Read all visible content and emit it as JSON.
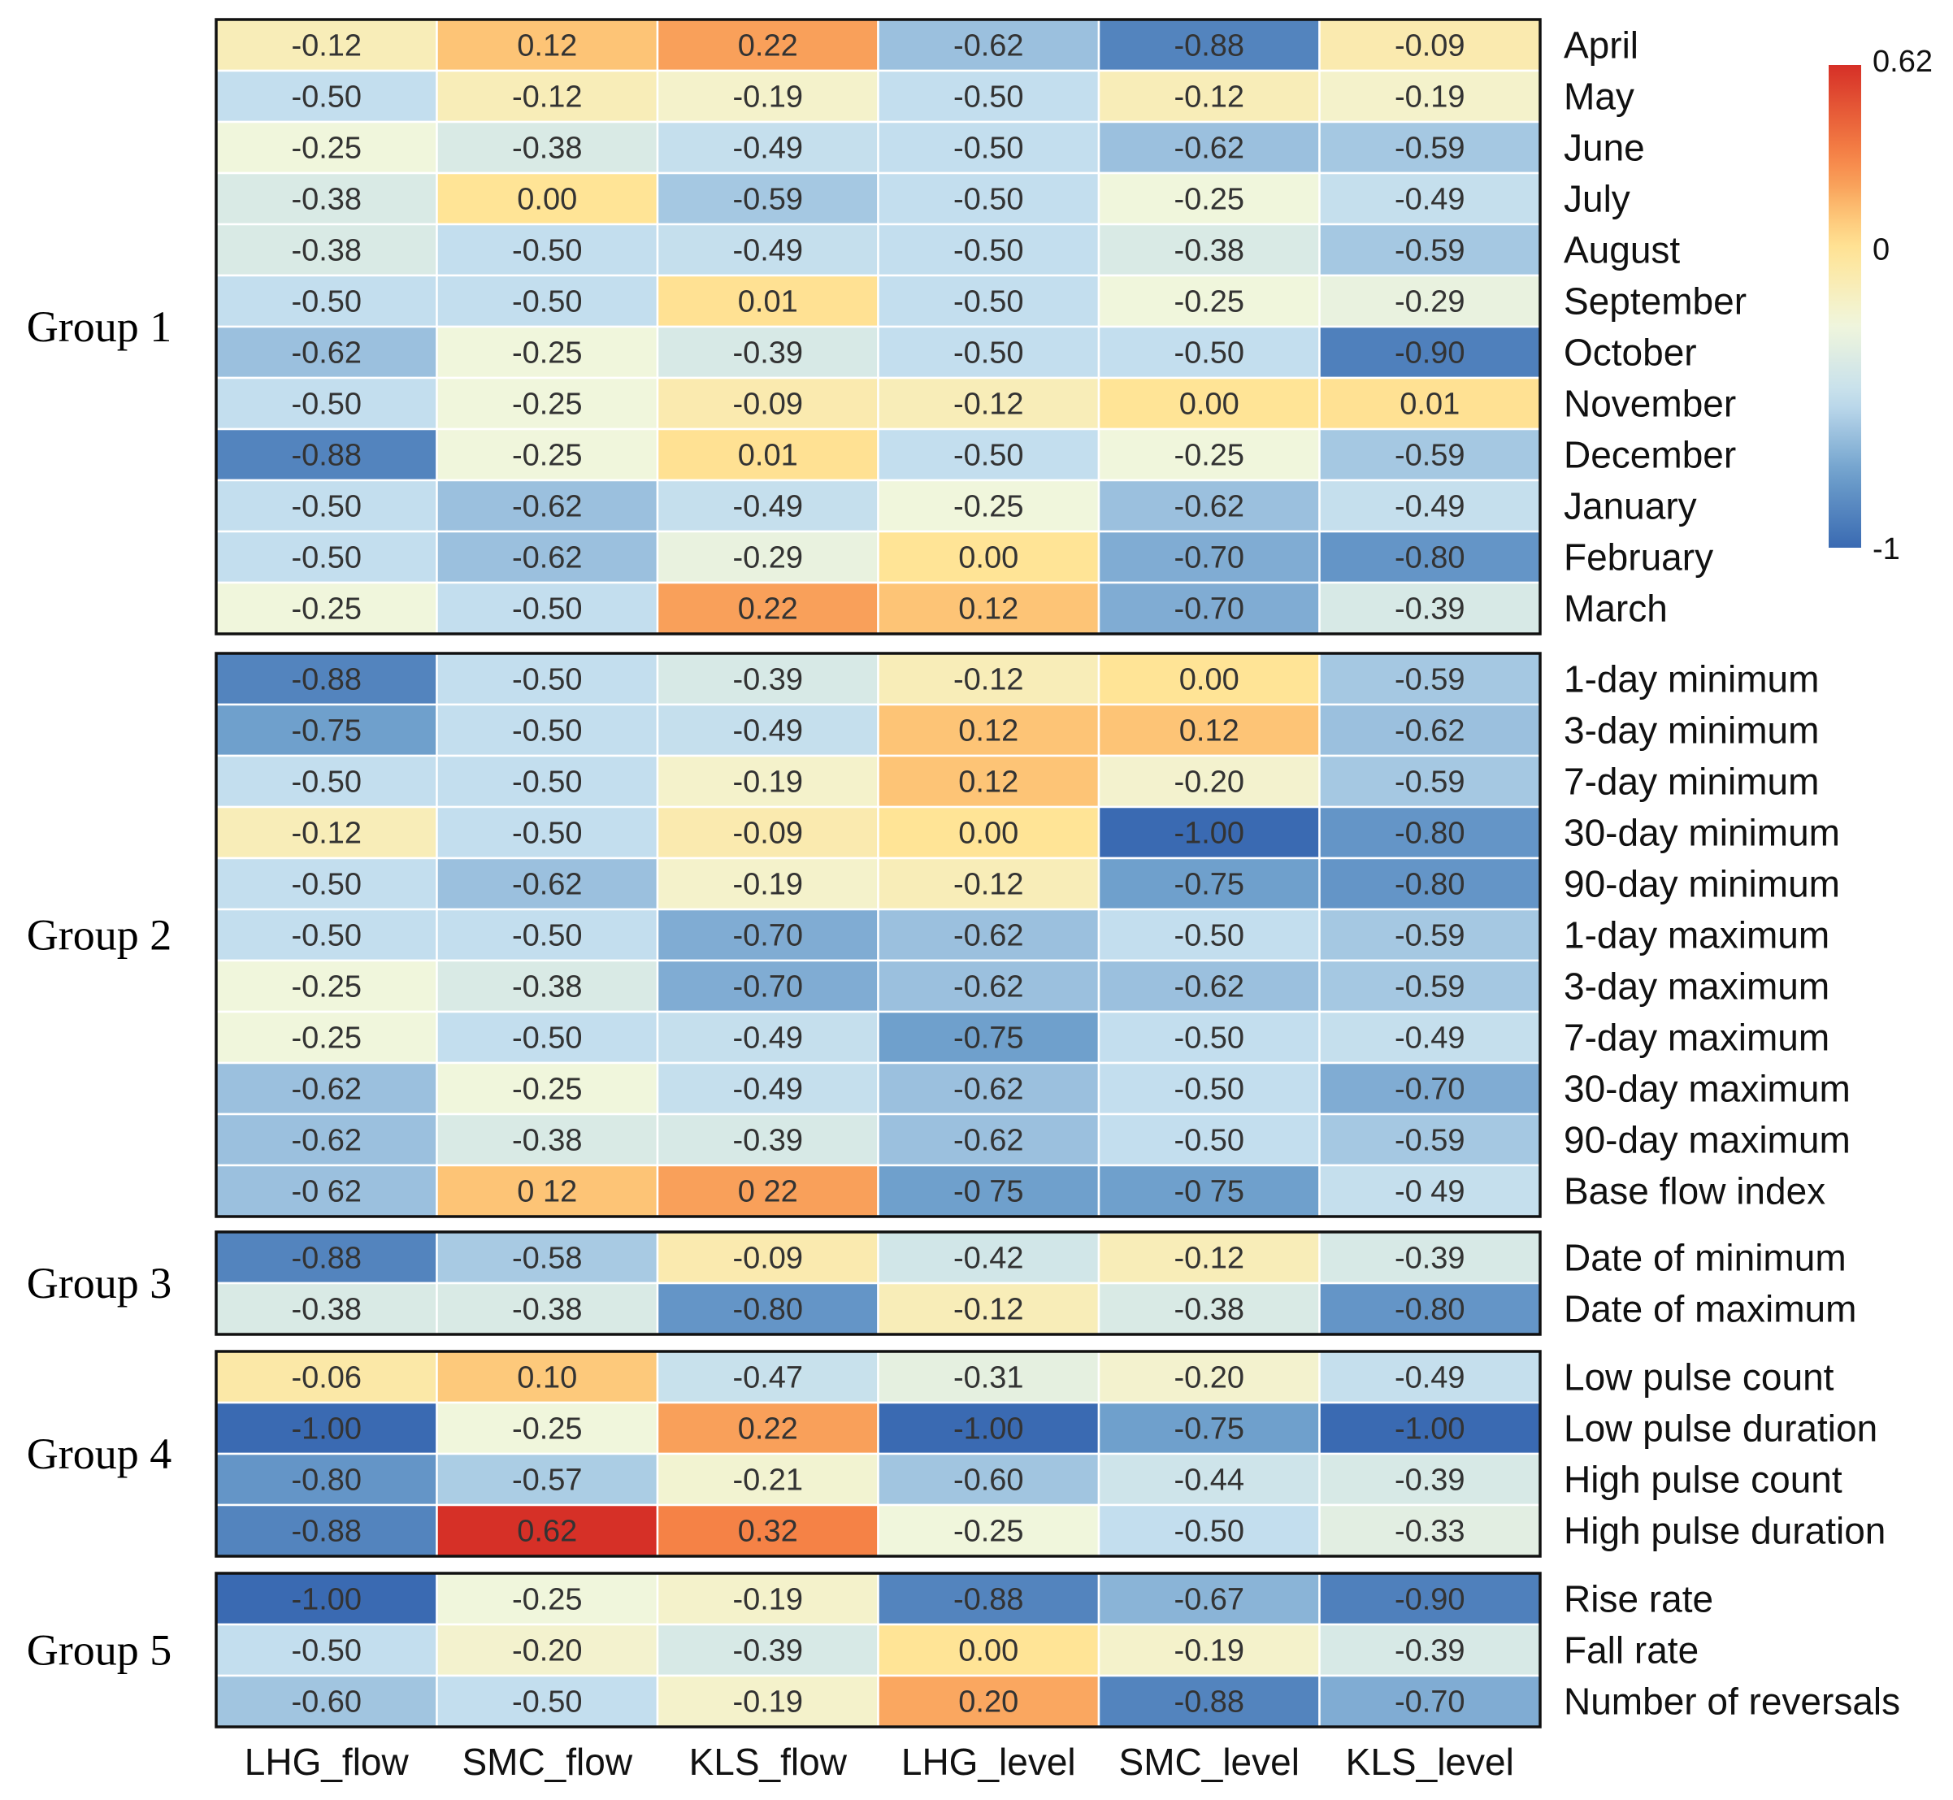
{
  "chart_data": {
    "type": "heatmap",
    "title": "",
    "columns": [
      "LHG_flow",
      "SMC_flow",
      "KLS_flow",
      "LHG_level",
      "SMC_level",
      "KLS_level"
    ],
    "groups": [
      {
        "name": "Group 1",
        "rows": [
          {
            "label": "April",
            "values": [
              -0.12,
              0.12,
              0.22,
              -0.62,
              -0.88,
              -0.09
            ],
            "display": [
              "-0.12",
              "0.12",
              "0.22",
              "-0.62",
              "-0.88",
              "-0.09"
            ]
          },
          {
            "label": "May",
            "values": [
              -0.5,
              -0.12,
              -0.19,
              -0.5,
              -0.12,
              -0.19
            ],
            "display": [
              "-0.50",
              "-0.12",
              "-0.19",
              "-0.50",
              "-0.12",
              "-0.19"
            ]
          },
          {
            "label": "June",
            "values": [
              -0.25,
              -0.38,
              -0.49,
              -0.5,
              -0.62,
              -0.59
            ],
            "display": [
              "-0.25",
              "-0.38",
              "-0.49",
              "-0.50",
              "-0.62",
              "-0.59"
            ]
          },
          {
            "label": "July",
            "values": [
              -0.38,
              0.0,
              -0.59,
              -0.5,
              -0.25,
              -0.49
            ],
            "display": [
              "-0.38",
              "0.00",
              "-0.59",
              "-0.50",
              "-0.25",
              "-0.49"
            ]
          },
          {
            "label": "August",
            "values": [
              -0.38,
              -0.5,
              -0.49,
              -0.5,
              -0.38,
              -0.59
            ],
            "display": [
              "-0.38",
              "-0.50",
              "-0.49",
              "-0.50",
              "-0.38",
              "-0.59"
            ]
          },
          {
            "label": "September",
            "values": [
              -0.5,
              -0.5,
              0.01,
              -0.5,
              -0.25,
              -0.29
            ],
            "display": [
              "-0.50",
              "-0.50",
              "0.01",
              "-0.50",
              "-0.25",
              "-0.29"
            ]
          },
          {
            "label": "October",
            "values": [
              -0.62,
              -0.25,
              -0.39,
              -0.5,
              -0.5,
              -0.9
            ],
            "display": [
              "-0.62",
              "-0.25",
              "-0.39",
              "-0.50",
              "-0.50",
              "-0.90"
            ]
          },
          {
            "label": "November",
            "values": [
              -0.5,
              -0.25,
              -0.09,
              -0.12,
              0.0,
              0.01
            ],
            "display": [
              "-0.50",
              "-0.25",
              "-0.09",
              "-0.12",
              "0.00",
              "0.01"
            ]
          },
          {
            "label": "December",
            "values": [
              -0.88,
              -0.25,
              0.01,
              -0.5,
              -0.25,
              -0.59
            ],
            "display": [
              "-0.88",
              "-0.25",
              "0.01",
              "-0.50",
              "-0.25",
              "-0.59"
            ]
          },
          {
            "label": "January",
            "values": [
              -0.5,
              -0.62,
              -0.49,
              -0.25,
              -0.62,
              -0.49
            ],
            "display": [
              "-0.50",
              "-0.62",
              "-0.49",
              "-0.25",
              "-0.62",
              "-0.49"
            ]
          },
          {
            "label": "February",
            "values": [
              -0.5,
              -0.62,
              -0.29,
              0.0,
              -0.7,
              -0.8
            ],
            "display": [
              "-0.50",
              "-0.62",
              "-0.29",
              "0.00",
              "-0.70",
              "-0.80"
            ]
          },
          {
            "label": "March",
            "values": [
              -0.25,
              -0.5,
              0.22,
              0.12,
              -0.7,
              -0.39
            ],
            "display": [
              "-0.25",
              "-0.50",
              "0.22",
              "0.12",
              "-0.70",
              "-0.39"
            ]
          }
        ]
      },
      {
        "name": "Group 2",
        "rows": [
          {
            "label": "1-day minimum",
            "values": [
              -0.88,
              -0.5,
              -0.39,
              -0.12,
              0.0,
              -0.59
            ],
            "display": [
              "-0.88",
              "-0.50",
              "-0.39",
              "-0.12",
              "0.00",
              "-0.59"
            ]
          },
          {
            "label": "3-day minimum",
            "values": [
              -0.75,
              -0.5,
              -0.49,
              0.12,
              0.12,
              -0.62
            ],
            "display": [
              "-0.75",
              "-0.50",
              "-0.49",
              "0.12",
              "0.12",
              "-0.62"
            ]
          },
          {
            "label": "7-day minimum",
            "values": [
              -0.5,
              -0.5,
              -0.19,
              0.12,
              -0.2,
              -0.59
            ],
            "display": [
              "-0.50",
              "-0.50",
              "-0.19",
              "0.12",
              "-0.20",
              "-0.59"
            ]
          },
          {
            "label": "30-day minimum",
            "values": [
              -0.12,
              -0.5,
              -0.09,
              0.0,
              -1.0,
              -0.8
            ],
            "display": [
              "-0.12",
              "-0.50",
              "-0.09",
              "0.00",
              "-1.00",
              "-0.80"
            ]
          },
          {
            "label": "90-day minimum",
            "values": [
              -0.5,
              -0.62,
              -0.19,
              -0.12,
              -0.75,
              -0.8
            ],
            "display": [
              "-0.50",
              "-0.62",
              "-0.19",
              "-0.12",
              "-0.75",
              "-0.80"
            ]
          },
          {
            "label": "1-day maximum",
            "values": [
              -0.5,
              -0.5,
              -0.7,
              -0.62,
              -0.5,
              -0.59
            ],
            "display": [
              "-0.50",
              "-0.50",
              "-0.70",
              "-0.62",
              "-0.50",
              "-0.59"
            ]
          },
          {
            "label": "3-day maximum",
            "values": [
              -0.25,
              -0.38,
              -0.7,
              -0.62,
              -0.62,
              -0.59
            ],
            "display": [
              "-0.25",
              "-0.38",
              "-0.70",
              "-0.62",
              "-0.62",
              "-0.59"
            ]
          },
          {
            "label": "7-day maximum",
            "values": [
              -0.25,
              -0.5,
              -0.49,
              -0.75,
              -0.5,
              -0.49
            ],
            "display": [
              "-0.25",
              "-0.50",
              "-0.49",
              "-0.75",
              "-0.50",
              "-0.49"
            ]
          },
          {
            "label": "30-day maximum",
            "values": [
              -0.62,
              -0.25,
              -0.49,
              -0.62,
              -0.5,
              -0.7
            ],
            "display": [
              "-0.62",
              "-0.25",
              "-0.49",
              "-0.62",
              "-0.50",
              "-0.70"
            ]
          },
          {
            "label": "90-day maximum",
            "values": [
              -0.62,
              -0.38,
              -0.39,
              -0.62,
              -0.5,
              -0.59
            ],
            "display": [
              "-0.62",
              "-0.38",
              "-0.39",
              "-0.62",
              "-0.50",
              "-0.59"
            ]
          },
          {
            "label": "Base flow index",
            "values": [
              -0.62,
              0.12,
              0.22,
              -0.75,
              -0.75,
              -0.49
            ],
            "display": [
              "-0 62",
              "0 12",
              "0 22",
              "-0 75",
              "-0 75",
              "-0 49"
            ]
          }
        ]
      },
      {
        "name": "Group 3",
        "rows": [
          {
            "label": "Date of minimum",
            "values": [
              -0.88,
              -0.58,
              -0.09,
              -0.42,
              -0.12,
              -0.39
            ],
            "display": [
              "-0.88",
              "-0.58",
              "-0.09",
              "-0.42",
              "-0.12",
              "-0.39"
            ]
          },
          {
            "label": "Date of maximum",
            "values": [
              -0.38,
              -0.38,
              -0.8,
              -0.12,
              -0.38,
              -0.8
            ],
            "display": [
              "-0.38",
              "-0.38",
              "-0.80",
              "-0.12",
              "-0.38",
              "-0.80"
            ]
          }
        ]
      },
      {
        "name": "Group 4",
        "rows": [
          {
            "label": "Low pulse count",
            "values": [
              -0.06,
              0.1,
              -0.47,
              -0.31,
              -0.2,
              -0.49
            ],
            "display": [
              "-0.06",
              "0.10",
              "-0.47",
              "-0.31",
              "-0.20",
              "-0.49"
            ]
          },
          {
            "label": "Low pulse duration",
            "values": [
              -1.0,
              -0.25,
              0.22,
              -1.0,
              -0.75,
              -1.0
            ],
            "display": [
              "-1.00",
              "-0.25",
              "0.22",
              "-1.00",
              "-0.75",
              "-1.00"
            ]
          },
          {
            "label": "High pulse count",
            "values": [
              -0.8,
              -0.57,
              -0.21,
              -0.6,
              -0.44,
              -0.39
            ],
            "display": [
              "-0.80",
              "-0.57",
              "-0.21",
              "-0.60",
              "-0.44",
              "-0.39"
            ]
          },
          {
            "label": "High pulse duration",
            "values": [
              -0.88,
              0.62,
              0.32,
              -0.25,
              -0.5,
              -0.33
            ],
            "display": [
              "-0.88",
              "0.62",
              "0.32",
              "-0.25",
              "-0.50",
              "-0.33"
            ]
          }
        ]
      },
      {
        "name": "Group 5",
        "rows": [
          {
            "label": "Rise rate",
            "values": [
              -1.0,
              -0.25,
              -0.19,
              -0.88,
              -0.67,
              -0.9
            ],
            "display": [
              "-1.00",
              "-0.25",
              "-0.19",
              "-0.88",
              "-0.67",
              "-0.90"
            ]
          },
          {
            "label": "Fall rate",
            "values": [
              -0.5,
              -0.2,
              -0.39,
              0.0,
              -0.19,
              -0.39
            ],
            "display": [
              "-0.50",
              "-0.20",
              "-0.39",
              "0.00",
              "-0.19",
              "-0.39"
            ]
          },
          {
            "label": "Number of reversals",
            "values": [
              -0.6,
              -0.5,
              -0.19,
              0.2,
              -0.88,
              -0.7
            ],
            "display": [
              "-0.60",
              "-0.50",
              "-0.19",
              "0.20",
              "-0.88",
              "-0.70"
            ]
          }
        ]
      }
    ],
    "colorbar": {
      "min": -1,
      "max": 0.62,
      "ticks": [
        {
          "value": 0.62,
          "label": "0.62"
        },
        {
          "value": 0,
          "label": "0"
        },
        {
          "value": -1,
          "label": "-1"
        }
      ],
      "colors": [
        "#3a6fb5",
        "#ffffc4",
        "#d73027"
      ]
    }
  }
}
